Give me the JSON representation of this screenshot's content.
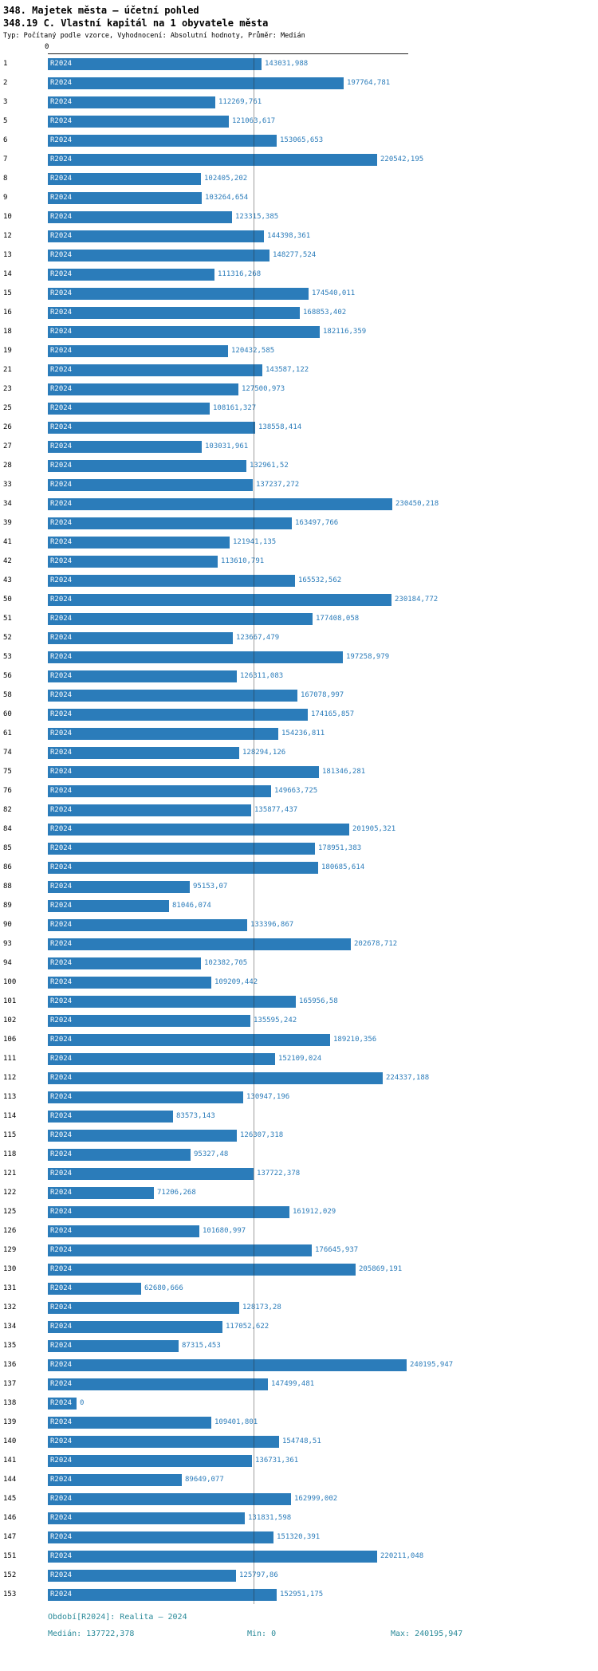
{
  "chart_data": {
    "type": "bar",
    "orientation": "horizontal",
    "title": "348. Majetek města – účetní pohled",
    "subtitle": "348.19 C. Vlastní kapitál na 1 obyvatele města",
    "meta": "Typ: Počítaný podle vzorce, Vyhodnocení: Absolutní hodnoty, Průměr: Medián",
    "series_label": "R2024",
    "axis_origin_label": "0",
    "xlim": [
      0,
      240195.947
    ],
    "median_value": 137722.378,
    "grid": false,
    "legend_position": "none",
    "rows": [
      {
        "id": "1",
        "value": 143031.988,
        "label": "143031,988"
      },
      {
        "id": "2",
        "value": 197764.781,
        "label": "197764,781"
      },
      {
        "id": "3",
        "value": 112269.761,
        "label": "112269,761"
      },
      {
        "id": "5",
        "value": 121063.617,
        "label": "121063,617"
      },
      {
        "id": "6",
        "value": 153065.653,
        "label": "153065,653"
      },
      {
        "id": "7",
        "value": 220542.195,
        "label": "220542,195"
      },
      {
        "id": "8",
        "value": 102405.202,
        "label": "102405,202"
      },
      {
        "id": "9",
        "value": 103264.654,
        "label": "103264,654"
      },
      {
        "id": "10",
        "value": 123315.385,
        "label": "123315,385"
      },
      {
        "id": "12",
        "value": 144398.361,
        "label": "144398,361"
      },
      {
        "id": "13",
        "value": 148277.524,
        "label": "148277,524"
      },
      {
        "id": "14",
        "value": 111316.268,
        "label": "111316,268"
      },
      {
        "id": "15",
        "value": 174540.011,
        "label": "174540,011"
      },
      {
        "id": "16",
        "value": 168853.402,
        "label": "168853,402"
      },
      {
        "id": "18",
        "value": 182116.359,
        "label": "182116,359"
      },
      {
        "id": "19",
        "value": 120432.585,
        "label": "120432,585"
      },
      {
        "id": "21",
        "value": 143587.122,
        "label": "143587,122"
      },
      {
        "id": "23",
        "value": 127500.973,
        "label": "127500,973"
      },
      {
        "id": "25",
        "value": 108161.327,
        "label": "108161,327"
      },
      {
        "id": "26",
        "value": 138558.414,
        "label": "138558,414"
      },
      {
        "id": "27",
        "value": 103031.961,
        "label": "103031,961"
      },
      {
        "id": "28",
        "value": 132961.52,
        "label": "132961,52"
      },
      {
        "id": "33",
        "value": 137237.272,
        "label": "137237,272"
      },
      {
        "id": "34",
        "value": 230450.218,
        "label": "230450,218"
      },
      {
        "id": "39",
        "value": 163497.766,
        "label": "163497,766"
      },
      {
        "id": "41",
        "value": 121941.135,
        "label": "121941,135"
      },
      {
        "id": "42",
        "value": 113610.791,
        "label": "113610,791"
      },
      {
        "id": "43",
        "value": 165532.562,
        "label": "165532,562"
      },
      {
        "id": "50",
        "value": 230184.772,
        "label": "230184,772"
      },
      {
        "id": "51",
        "value": 177408.058,
        "label": "177408,058"
      },
      {
        "id": "52",
        "value": 123667.479,
        "label": "123667,479"
      },
      {
        "id": "53",
        "value": 197258.979,
        "label": "197258,979"
      },
      {
        "id": "56",
        "value": 126311.083,
        "label": "126311,083"
      },
      {
        "id": "58",
        "value": 167078.997,
        "label": "167078,997"
      },
      {
        "id": "60",
        "value": 174165.857,
        "label": "174165,857"
      },
      {
        "id": "61",
        "value": 154236.811,
        "label": "154236,811"
      },
      {
        "id": "74",
        "value": 128294.126,
        "label": "128294,126"
      },
      {
        "id": "75",
        "value": 181346.281,
        "label": "181346,281"
      },
      {
        "id": "76",
        "value": 149663.725,
        "label": "149663,725"
      },
      {
        "id": "82",
        "value": 135877.437,
        "label": "135877,437"
      },
      {
        "id": "84",
        "value": 201905.321,
        "label": "201905,321"
      },
      {
        "id": "85",
        "value": 178951.383,
        "label": "178951,383"
      },
      {
        "id": "86",
        "value": 180685.614,
        "label": "180685,614"
      },
      {
        "id": "88",
        "value": 95153.07,
        "label": "95153,07"
      },
      {
        "id": "89",
        "value": 81046.074,
        "label": "81046,074"
      },
      {
        "id": "90",
        "value": 133396.867,
        "label": "133396,867"
      },
      {
        "id": "93",
        "value": 202678.712,
        "label": "202678,712"
      },
      {
        "id": "94",
        "value": 102382.705,
        "label": "102382,705"
      },
      {
        "id": "100",
        "value": 109209.442,
        "label": "109209,442"
      },
      {
        "id": "101",
        "value": 165956.58,
        "label": "165956,58"
      },
      {
        "id": "102",
        "value": 135595.242,
        "label": "135595,242"
      },
      {
        "id": "106",
        "value": 189210.356,
        "label": "189210,356"
      },
      {
        "id": "111",
        "value": 152109.024,
        "label": "152109,024"
      },
      {
        "id": "112",
        "value": 224337.188,
        "label": "224337,188"
      },
      {
        "id": "113",
        "value": 130947.196,
        "label": "130947,196"
      },
      {
        "id": "114",
        "value": 83573.143,
        "label": "83573,143"
      },
      {
        "id": "115",
        "value": 126307.318,
        "label": "126307,318"
      },
      {
        "id": "118",
        "value": 95327.48,
        "label": "95327,48"
      },
      {
        "id": "121",
        "value": 137722.378,
        "label": "137722,378"
      },
      {
        "id": "122",
        "value": 71206.268,
        "label": "71206,268"
      },
      {
        "id": "125",
        "value": 161912.029,
        "label": "161912,029"
      },
      {
        "id": "126",
        "value": 101680.997,
        "label": "101680,997"
      },
      {
        "id": "129",
        "value": 176645.937,
        "label": "176645,937"
      },
      {
        "id": "130",
        "value": 205869.191,
        "label": "205869,191"
      },
      {
        "id": "131",
        "value": 62680.666,
        "label": "62680,666"
      },
      {
        "id": "132",
        "value": 128173.28,
        "label": "128173,28"
      },
      {
        "id": "134",
        "value": 117052.622,
        "label": "117052,622"
      },
      {
        "id": "135",
        "value": 87315.453,
        "label": "87315,453"
      },
      {
        "id": "136",
        "value": 240195.947,
        "label": "240195,947"
      },
      {
        "id": "137",
        "value": 147499.481,
        "label": "147499,481"
      },
      {
        "id": "138",
        "value": 0,
        "label": "0"
      },
      {
        "id": "139",
        "value": 109401.801,
        "label": "109401,801"
      },
      {
        "id": "140",
        "value": 154748.51,
        "label": "154748,51"
      },
      {
        "id": "141",
        "value": 136731.361,
        "label": "136731,361"
      },
      {
        "id": "144",
        "value": 89649.077,
        "label": "89649,077"
      },
      {
        "id": "145",
        "value": 162999.002,
        "label": "162999,002"
      },
      {
        "id": "146",
        "value": 131831.598,
        "label": "131831,598"
      },
      {
        "id": "147",
        "value": 151320.391,
        "label": "151320,391"
      },
      {
        "id": "151",
        "value": 220211.048,
        "label": "220211,048"
      },
      {
        "id": "152",
        "value": 125797.86,
        "label": "125797,86"
      },
      {
        "id": "153",
        "value": 152951.175,
        "label": "152951,175"
      }
    ],
    "footer": {
      "period": "Období[R2024]: Realita – 2024",
      "median": "Medián: 137722,378",
      "min": "Min: 0",
      "max": "Max: 240195,947"
    }
  },
  "colors": {
    "bar": "#2b7cba",
    "value_text": "#2b7cba",
    "bar_label_text": "#ffffff",
    "footer_text": "#2a8a99",
    "axis": "#222222",
    "median_line": "#4a4a4a"
  }
}
